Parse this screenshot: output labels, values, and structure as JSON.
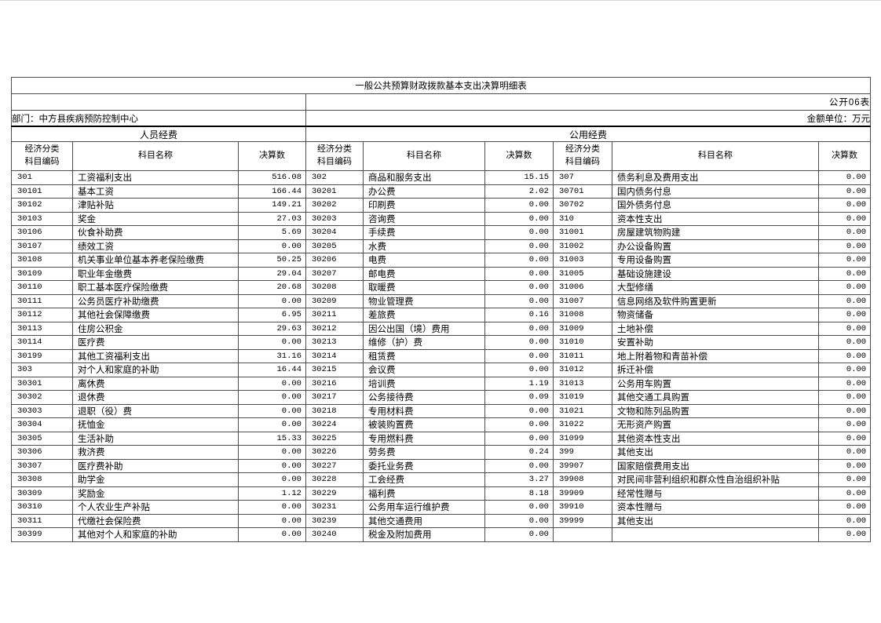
{
  "header": {
    "title": "一般公共预算财政拨款基本支出决算明细表",
    "sheet_label": "公开06表",
    "department": "部门：中方县疾病预防控制中心",
    "unit": "金额单位：万元"
  },
  "table": {
    "section_personnel": "人员经费",
    "section_public": "公用经费",
    "col_code_line1": "经济分类",
    "col_code_line2": "科目编码",
    "col_name": "科目名称",
    "col_amount": "决算数",
    "personnel_rows": [
      [
        "301",
        "工资福利支出",
        "516.08"
      ],
      [
        "30101",
        "基本工资",
        "166.44"
      ],
      [
        "30102",
        "津贴补贴",
        "149.21"
      ],
      [
        "30103",
        "奖金",
        "27.03"
      ],
      [
        "30106",
        "伙食补助费",
        "5.69"
      ],
      [
        "30107",
        "绩效工资",
        "0.00"
      ],
      [
        "30108",
        "机关事业单位基本养老保险缴费",
        "50.25"
      ],
      [
        "30109",
        "职业年金缴费",
        "29.04"
      ],
      [
        "30110",
        "职工基本医疗保险缴费",
        "20.68"
      ],
      [
        "30111",
        "公务员医疗补助缴费",
        "0.00"
      ],
      [
        "30112",
        "其他社会保障缴费",
        "6.95"
      ],
      [
        "30113",
        "住房公积金",
        "29.63"
      ],
      [
        "30114",
        "医疗费",
        "0.00"
      ],
      [
        "30199",
        "其他工资福利支出",
        "31.16"
      ],
      [
        "303",
        "对个人和家庭的补助",
        "16.44"
      ],
      [
        "30301",
        "离休费",
        "0.00"
      ],
      [
        "30302",
        "退休费",
        "0.00"
      ],
      [
        "30303",
        "退职（役）费",
        "0.00"
      ],
      [
        "30304",
        "抚恤金",
        "0.00"
      ],
      [
        "30305",
        "生活补助",
        "15.33"
      ],
      [
        "30306",
        "救济费",
        "0.00"
      ],
      [
        "30307",
        "医疗费补助",
        "0.00"
      ],
      [
        "30308",
        "助学金",
        "0.00"
      ],
      [
        "30309",
        "奖励金",
        "1.12"
      ],
      [
        "30310",
        "个人农业生产补贴",
        "0.00"
      ],
      [
        "30311",
        "代缴社会保险费",
        "0.00"
      ],
      [
        "30399",
        "其他对个人和家庭的补助",
        "0.00"
      ]
    ],
    "public_goods_rows": [
      [
        "302",
        "商品和服务支出",
        "15.15"
      ],
      [
        "30201",
        "办公费",
        "2.02"
      ],
      [
        "30202",
        "印刷费",
        "0.00"
      ],
      [
        "30203",
        "咨询费",
        "0.00"
      ],
      [
        "30204",
        "手续费",
        "0.00"
      ],
      [
        "30205",
        "水费",
        "0.00"
      ],
      [
        "30206",
        "电费",
        "0.00"
      ],
      [
        "30207",
        "邮电费",
        "0.00"
      ],
      [
        "30208",
        "取暖费",
        "0.00"
      ],
      [
        "30209",
        "物业管理费",
        "0.00"
      ],
      [
        "30211",
        "差旅费",
        "0.16"
      ],
      [
        "30212",
        "因公出国（境）费用",
        "0.00"
      ],
      [
        "30213",
        "维修（护）费",
        "0.00"
      ],
      [
        "30214",
        "租赁费",
        "0.00"
      ],
      [
        "30215",
        "会议费",
        "0.00"
      ],
      [
        "30216",
        "培训费",
        "1.19"
      ],
      [
        "30217",
        "公务接待费",
        "0.09"
      ],
      [
        "30218",
        "专用材料费",
        "0.00"
      ],
      [
        "30224",
        "被装购置费",
        "0.00"
      ],
      [
        "30225",
        "专用燃料费",
        "0.00"
      ],
      [
        "30226",
        "劳务费",
        "0.24"
      ],
      [
        "30227",
        "委托业务费",
        "0.00"
      ],
      [
        "30228",
        "工会经费",
        "3.27"
      ],
      [
        "30229",
        "福利费",
        "8.18"
      ],
      [
        "30231",
        "公务用车运行维护费",
        "0.00"
      ],
      [
        "30239",
        "其他交通费用",
        "0.00"
      ],
      [
        "30240",
        "税金及附加费用",
        "0.00"
      ]
    ],
    "public_capital_rows": [
      [
        "307",
        "债务利息及费用支出",
        "0.00"
      ],
      [
        "30701",
        "国内债务付息",
        "0.00"
      ],
      [
        "30702",
        "国外债务付息",
        "0.00"
      ],
      [
        "310",
        "资本性支出",
        "0.00"
      ],
      [
        "31001",
        "房屋建筑物购建",
        "0.00"
      ],
      [
        "31002",
        "办公设备购置",
        "0.00"
      ],
      [
        "31003",
        "专用设备购置",
        "0.00"
      ],
      [
        "31005",
        "基础设施建设",
        "0.00"
      ],
      [
        "31006",
        "大型修缮",
        "0.00"
      ],
      [
        "31007",
        "信息网络及软件购置更新",
        "0.00"
      ],
      [
        "31008",
        "物资储备",
        "0.00"
      ],
      [
        "31009",
        "土地补偿",
        "0.00"
      ],
      [
        "31010",
        "安置补助",
        "0.00"
      ],
      [
        "31011",
        "地上附着物和青苗补偿",
        "0.00"
      ],
      [
        "31012",
        "拆迁补偿",
        "0.00"
      ],
      [
        "31013",
        "公务用车购置",
        "0.00"
      ],
      [
        "31019",
        "其他交通工具购置",
        "0.00"
      ],
      [
        "31021",
        "文物和陈列品购置",
        "0.00"
      ],
      [
        "31022",
        "无形资产购置",
        "0.00"
      ],
      [
        "31099",
        "其他资本性支出",
        "0.00"
      ],
      [
        "399",
        "其他支出",
        "0.00"
      ],
      [
        "39907",
        "国家赔偿费用支出",
        "0.00"
      ],
      [
        "39908",
        "对民间非营利组织和群众性自治组织补贴",
        "0.00"
      ],
      [
        "39909",
        "经常性赠与",
        "0.00"
      ],
      [
        "39910",
        "资本性赠与",
        "0.00"
      ],
      [
        "39999",
        "其他支出",
        "0.00"
      ],
      [
        "",
        "",
        "0.00"
      ]
    ]
  }
}
